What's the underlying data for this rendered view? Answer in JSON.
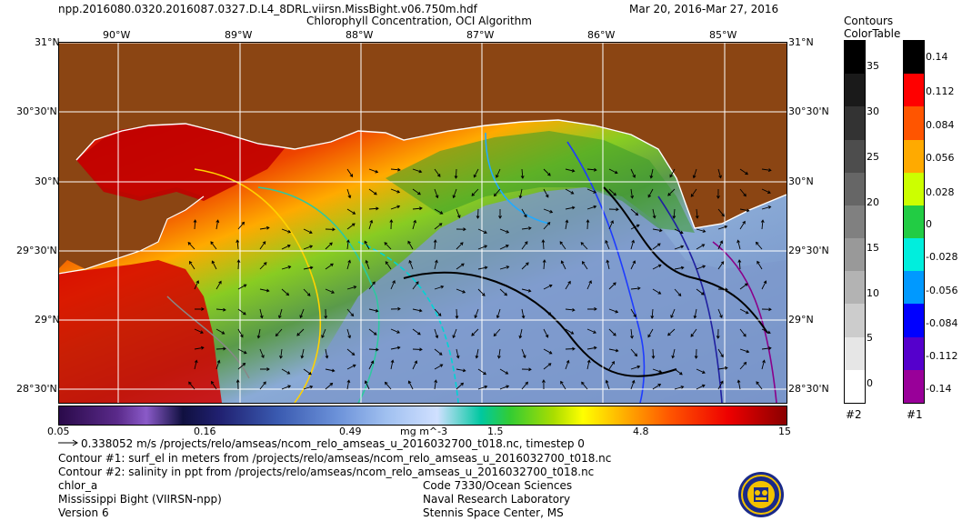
{
  "header": {
    "filename": "npp.2016080.0320.2016087.0327.D.L4_8DRL.viirsn.MissBight.v06.750m.hdf",
    "title": "Chlorophyll Concentration, OCI Algorithm",
    "date_range": "Mar 20, 2016-Mar 27, 2016"
  },
  "map": {
    "lon_labels": [
      "90°W",
      "89°W",
      "88°W",
      "87°W",
      "86°W",
      "85°W"
    ],
    "lat_labels": [
      "31°N",
      "30°30'N",
      "30°N",
      "29°30'N",
      "29°N",
      "28°30'N"
    ],
    "land_color": "#8B4513",
    "coastline_color": "#ffffff"
  },
  "colorbar": {
    "ticks": [
      "0.05",
      "0.16",
      "0.49",
      "1.5",
      "4.8",
      "15"
    ],
    "unit": "mg m^-3"
  },
  "legend_panels": {
    "contours_title": "Contours",
    "colortable_title": "ColorTable",
    "contours_ticks": [
      "35",
      "30",
      "25",
      "20",
      "15",
      "10",
      "5",
      "0"
    ],
    "contours_footer": "#2",
    "colortable_ticks": [
      "0.14",
      "0.112",
      "0.084",
      "0.056",
      "0.028",
      "0",
      "-0.028",
      "-0.056",
      "-0.084",
      "-0.112",
      "-0.14"
    ],
    "colortable_footer": "#1",
    "contours_colors": [
      "#000000",
      "#1a1a1a",
      "#333333",
      "#4d4d4d",
      "#666666",
      "#808080",
      "#999999",
      "#b3b3b3",
      "#cccccc",
      "#e6e6e6",
      "#ffffff"
    ],
    "colortable_colors": [
      "#000000",
      "#ff0000",
      "#ff5500",
      "#ffaa00",
      "#ccff00",
      "#22cc44",
      "#00eedd",
      "#0099ff",
      "#0000ff",
      "#5500cc",
      "#990099"
    ]
  },
  "footer": {
    "vector_label": "0.338052 m/s /projects/relo/amseas/ncom_relo_amseas_u_2016032700_t018.nc, timestep 0",
    "contour1": "Contour #1: surf_el in meters from /projects/relo/amseas/ncom_relo_amseas_u_2016032700_t018.nc",
    "contour2": "Contour #2: salinity in ppt from /projects/relo/amseas/ncom_relo_amseas_u_2016032700_t018.nc",
    "product": "chlor_a",
    "region": "Mississippi Bight (VIIRSN-npp)",
    "version": "Version 6",
    "org_code": "Code 7330/Ocean Sciences",
    "org_name": "Naval Research Laboratory",
    "org_location": "Stennis Space Center, MS"
  }
}
